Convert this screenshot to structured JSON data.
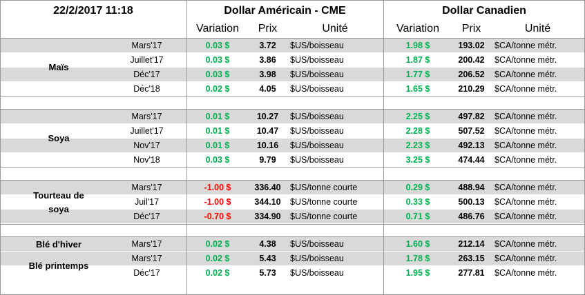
{
  "header": {
    "timestamp": "22/2/2017 11:18",
    "us_group": "Dollar Américain - CME",
    "ca_group": "Dollar Canadien",
    "columns": [
      "Variation",
      "Prix",
      "Unité",
      "Variation",
      "Prix",
      "Unité"
    ]
  },
  "groups": [
    {
      "name": "Maïs",
      "rows": [
        [
          "Mars'17",
          "0.03 $",
          "3.72",
          "$US/boisseau",
          "1.98 $",
          "193.02",
          "$CA/tonne métr."
        ],
        [
          "Juillet'17",
          "0.03 $",
          "3.86",
          "$US/boisseau",
          "1.87 $",
          "200.42",
          "$CA/tonne métr."
        ],
        [
          "Déc'17",
          "0.03 $",
          "3.98",
          "$US/boisseau",
          "1.77 $",
          "206.52",
          "$CA/tonne métr."
        ],
        [
          "Déc'18",
          "0.02 $",
          "4.05",
          "$US/boisseau",
          "1.65 $",
          "210.29",
          "$CA/tonne métr."
        ]
      ]
    },
    {
      "name": "Soya",
      "rows": [
        [
          "Mars'17",
          "0.01 $",
          "10.27",
          "$US/boisseau",
          "2.25 $",
          "497.82",
          "$CA/tonne métr."
        ],
        [
          "Juillet'17",
          "0.01 $",
          "10.47",
          "$US/boisseau",
          "2.28 $",
          "507.52",
          "$CA/tonne métr."
        ],
        [
          "Nov'17",
          "0.01 $",
          "10.16",
          "$US/boisseau",
          "2.23 $",
          "492.13",
          "$CA/tonne métr."
        ],
        [
          "Nov'18",
          "0.03 $",
          "9.79",
          "$US/boisseau",
          "3.25 $",
          "474.44",
          "$CA/tonne métr."
        ]
      ]
    },
    {
      "name": "Tourteau de soya",
      "rows": [
        [
          "Mars'17",
          "-1.00 $",
          "336.40",
          "$US/tonne courte",
          "0.29 $",
          "488.94",
          "$CA/tonne métr."
        ],
        [
          "Juil'17",
          "-1.00 $",
          "344.10",
          "$US/tonne courte",
          "0.33 $",
          "500.13",
          "$CA/tonne métr."
        ],
        [
          "Déc'17",
          "-0.70 $",
          "334.90",
          "$US/tonne courte",
          "0.71 $",
          "486.76",
          "$CA/tonne métr."
        ]
      ]
    },
    {
      "name": "Blé d'hiver",
      "rows": [
        [
          "Mars'17",
          "0.02 $",
          "4.38",
          "$US/boisseau",
          "1.60 $",
          "212.14",
          "$CA/tonne métr."
        ]
      ]
    },
    {
      "name": "Blé printemps",
      "rows": [
        [
          "Mars'17",
          "0.02 $",
          "5.43",
          "$US/boisseau",
          "1.78 $",
          "263.15",
          "$CA/tonne métr."
        ],
        [
          "Déc'17",
          "0.02 $",
          "5.73",
          "$US/boisseau",
          "1.95 $",
          "277.81",
          "$CA/tonne métr."
        ]
      ]
    }
  ]
}
